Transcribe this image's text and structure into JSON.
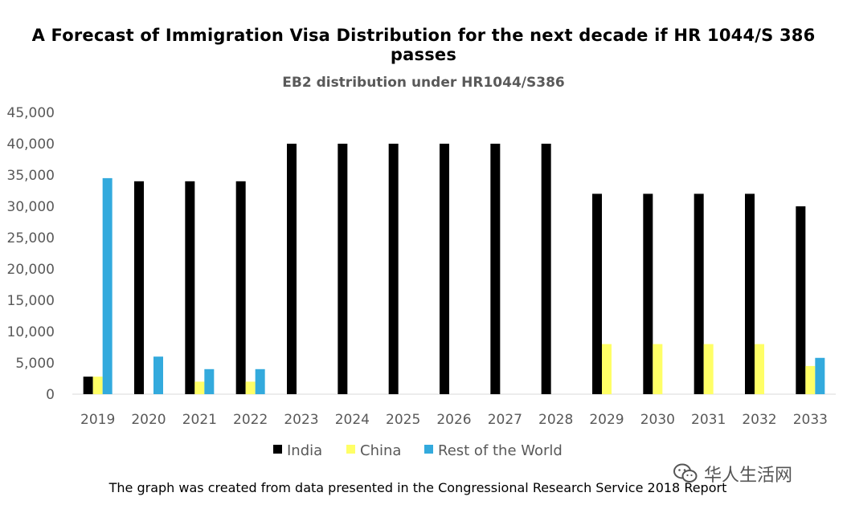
{
  "page": {
    "title": "A Forecast of Immigration Visa Distribution for the next decade if HR 1044/S 386 passes",
    "footnote": "The graph was created from data presented in the Congressional Research Service 2018 Report",
    "watermark_text": "华人生活网",
    "watermark_icon": "wechat-icon"
  },
  "chart_data": {
    "type": "bar",
    "title": "EB2 distribution under HR1044/S386",
    "xlabel": "",
    "ylabel": "",
    "ylim": [
      0,
      45000
    ],
    "yticks": [
      0,
      5000,
      10000,
      15000,
      20000,
      25000,
      30000,
      35000,
      40000,
      45000
    ],
    "ytick_labels": [
      "0",
      "5,000",
      "10,000",
      "15,000",
      "20,000",
      "25,000",
      "30,000",
      "35,000",
      "40,000",
      "45,000"
    ],
    "grid": false,
    "legend_position": "bottom",
    "categories": [
      "2019",
      "2020",
      "2021",
      "2022",
      "2023",
      "2024",
      "2025",
      "2026",
      "2027",
      "2028",
      "2029",
      "2030",
      "2031",
      "2032",
      "2033"
    ],
    "series": [
      {
        "name": "India",
        "color": "#000000",
        "values": [
          2800,
          34000,
          34000,
          34000,
          40000,
          40000,
          40000,
          40000,
          40000,
          40000,
          32000,
          32000,
          32000,
          32000,
          30000
        ]
      },
      {
        "name": "China",
        "color": "#ffff66",
        "values": [
          2800,
          0,
          2000,
          2000,
          0,
          0,
          0,
          0,
          0,
          0,
          8000,
          8000,
          8000,
          8000,
          4500
        ]
      },
      {
        "name": "Rest of the World",
        "color": "#33aadd",
        "values": [
          34500,
          6000,
          4000,
          4000,
          0,
          0,
          0,
          0,
          0,
          0,
          0,
          0,
          0,
          0,
          5800
        ]
      }
    ]
  }
}
